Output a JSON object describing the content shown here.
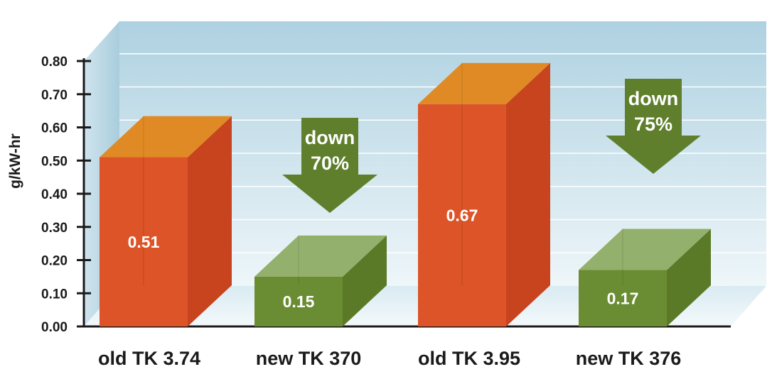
{
  "chart_data": {
    "type": "bar",
    "ylabel": "g/kW-hr",
    "ylim": [
      0,
      0.8
    ],
    "yticks": [
      "0.00",
      "0.10",
      "0.20",
      "0.30",
      "0.40",
      "0.50",
      "0.60",
      "0.70",
      "0.80"
    ],
    "categories": [
      "old TK 3.74",
      "new TK 370",
      "old TK 3.95",
      "new TK 376"
    ],
    "values": [
      0.51,
      0.15,
      0.67,
      0.17
    ],
    "value_labels": [
      "0.51",
      "0.15",
      "0.67",
      "0.17"
    ],
    "bar_colors": [
      "#dc5427",
      "#6a8c32",
      "#dc5427",
      "#6a8c32"
    ],
    "annotations": [
      {
        "line1": "down",
        "line2": "70%",
        "target_category": "new TK 370"
      },
      {
        "line1": "down",
        "line2": "75%",
        "target_category": "new TK 376"
      }
    ],
    "grid": true,
    "style": "3d"
  },
  "colors": {
    "old_front": "#dc5427",
    "old_side": "#c8441e",
    "old_top": "#e08a25",
    "new_front": "#6a8c32",
    "new_side": "#5b7a28",
    "new_top": "#93b06c",
    "arrow": "#5f7f2c",
    "wall_top": "#aed1e1",
    "wall_bottom": "#eef6f9",
    "grid": "#ffffff",
    "axis": "#1a1a1a"
  }
}
